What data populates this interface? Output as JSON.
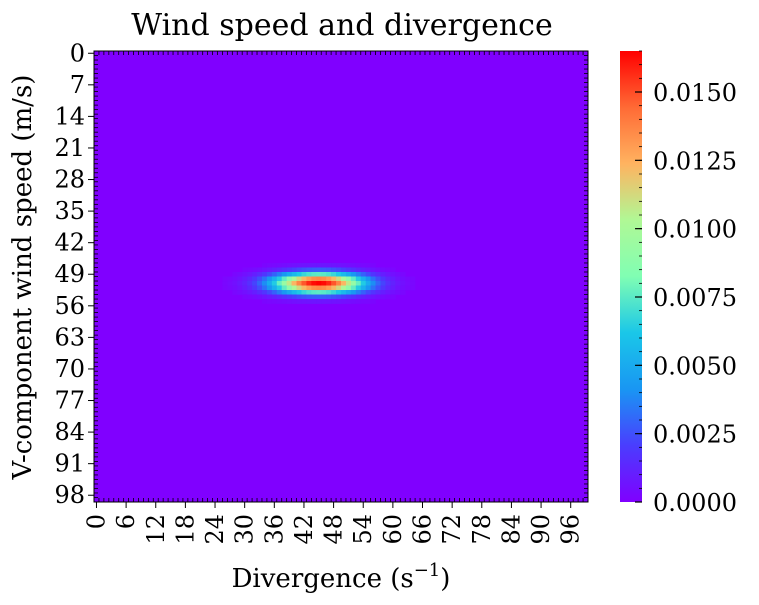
{
  "chart_data": {
    "type": "heatmap",
    "title": "Wind speed and divergence",
    "xlabel": "Divergence (s",
    "xlabel_sup": "−1",
    "xlabel_end": ")",
    "ylabel": "V-component wind speed (m/s)",
    "x_tick_labels": [
      "0",
      "6",
      "12",
      "18",
      "24",
      "30",
      "36",
      "42",
      "48",
      "54",
      "60",
      "66",
      "72",
      "78",
      "84",
      "90",
      "96"
    ],
    "y_tick_labels": [
      "0",
      "7",
      "14",
      "21",
      "28",
      "35",
      "42",
      "49",
      "56",
      "63",
      "70",
      "77",
      "84",
      "91",
      "98"
    ],
    "grid": {
      "rows": 100,
      "cols": 100
    },
    "colormap": "rainbow",
    "colorbar": {
      "min": 0.0,
      "max": 0.0165,
      "tick_values": [
        0.0,
        0.0025,
        0.005,
        0.0075,
        0.01,
        0.0125,
        0.015
      ],
      "tick_labels": [
        "0.0000",
        "0.0025",
        "0.0050",
        "0.0075",
        "0.0100",
        "0.0125",
        "0.0150"
      ]
    },
    "peak": {
      "x": 45,
      "y": 51,
      "value": 0.0165
    },
    "spread": {
      "x_sigma": 6.5,
      "y_sigma": 1.6
    },
    "background_value": 0.0
  }
}
